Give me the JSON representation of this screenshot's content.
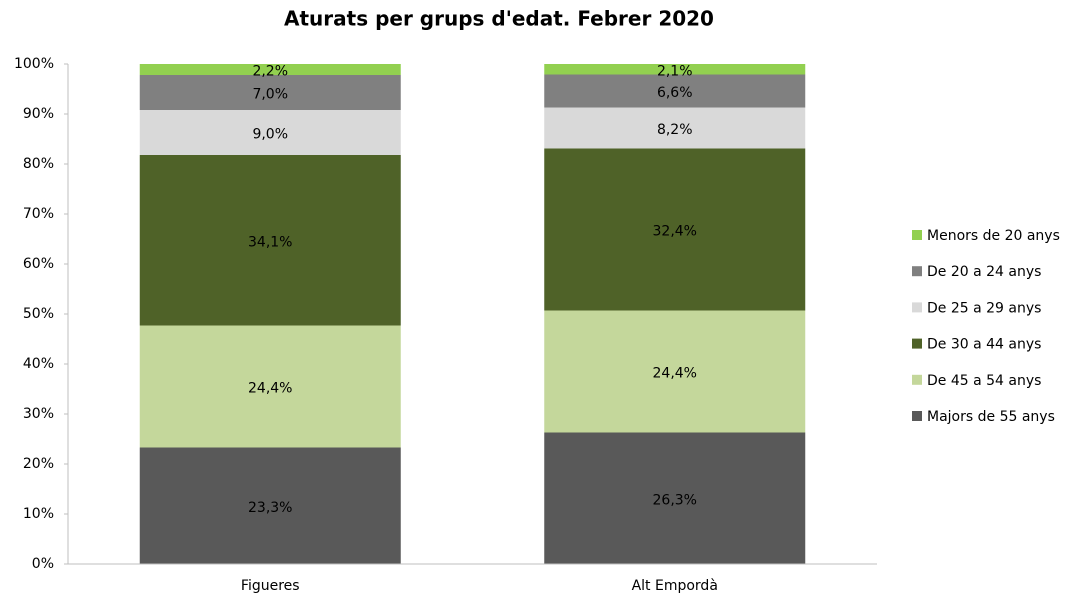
{
  "chart_data": {
    "type": "stacked_bar",
    "title": "Aturats per grups d'edat. Febrer 2020",
    "categories": [
      "Figueres",
      "Alt Empordà"
    ],
    "series": [
      {
        "name": "Majors de 55 anys",
        "color": "#595959",
        "values": [
          23.3,
          26.3
        ],
        "value_labels": [
          "23,3%",
          "26,3%"
        ]
      },
      {
        "name": "De 45 a 54 anys",
        "color": "#c4d79b",
        "values": [
          24.4,
          24.4
        ],
        "value_labels": [
          "24,4%",
          "24,4%"
        ]
      },
      {
        "name": "De 30 a 44 anys",
        "color": "#4f6228",
        "values": [
          34.1,
          32.4
        ],
        "value_labels": [
          "34,1%",
          "32,4%"
        ]
      },
      {
        "name": "De 25 a 29 anys",
        "color": "#d9d9d9",
        "values": [
          9.0,
          8.2
        ],
        "value_labels": [
          "9,0%",
          "8,2%"
        ]
      },
      {
        "name": "De 20 a 24 anys",
        "color": "#808080",
        "values": [
          7.0,
          6.6
        ],
        "value_labels": [
          "7,0%",
          "6,6%"
        ]
      },
      {
        "name": "Menors de 20 anys",
        "color": "#92d050",
        "values": [
          2.2,
          2.1
        ],
        "value_labels": [
          "2,2%",
          "2,1%"
        ]
      }
    ],
    "ylim": [
      0,
      100
    ],
    "yticks": [
      {
        "value": 0,
        "label": "0%"
      },
      {
        "value": 10,
        "label": "10%"
      },
      {
        "value": 20,
        "label": "20%"
      },
      {
        "value": 30,
        "label": "30%"
      },
      {
        "value": 40,
        "label": "40%"
      },
      {
        "value": 50,
        "label": "50%"
      },
      {
        "value": 60,
        "label": "60%"
      },
      {
        "value": 70,
        "label": "70%"
      },
      {
        "value": 80,
        "label": "80%"
      },
      {
        "value": 90,
        "label": "90%"
      },
      {
        "value": 100,
        "label": "100%"
      }
    ],
    "grid": false,
    "legend": "right"
  }
}
